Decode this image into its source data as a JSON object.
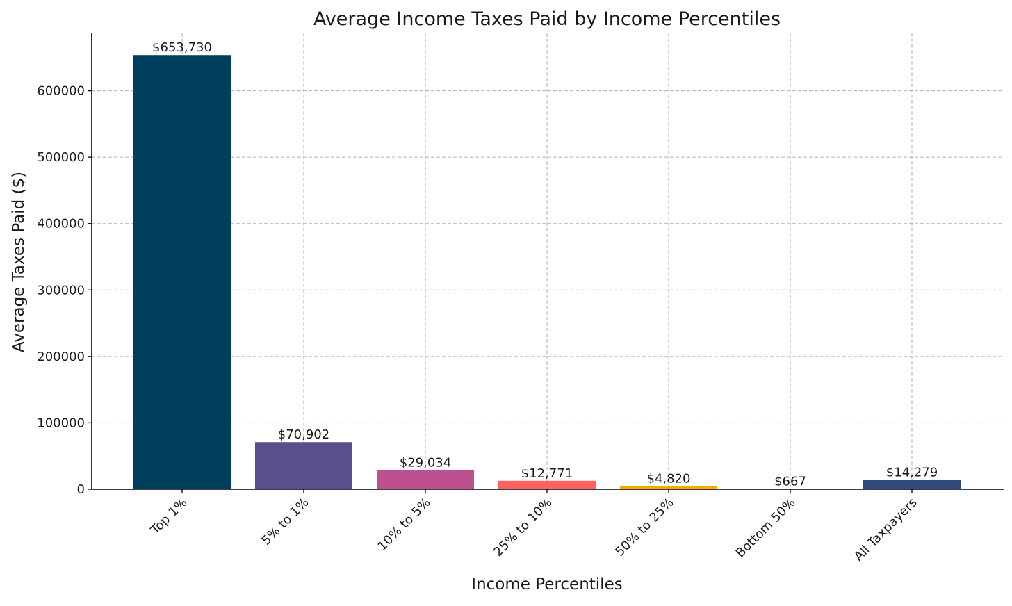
{
  "chart_data": {
    "type": "bar",
    "title": "Average Income Taxes Paid by Income Percentiles",
    "xlabel": "Income Percentiles",
    "ylabel": "Average Taxes Paid ($)",
    "categories": [
      "Top 1%",
      "5% to 1%",
      "10% to 5%",
      "25% to 10%",
      "50% to 25%",
      "Bottom 50%",
      "All Taxpayers"
    ],
    "values": [
      653730,
      70902,
      29034,
      12771,
      4820,
      667,
      14279
    ],
    "data_labels": [
      "$653,730",
      "$70,902",
      "$29,034",
      "$12,771",
      "$4,820",
      "$667",
      "$14,279"
    ],
    "colors": [
      "#003f5c",
      "#58508d",
      "#bc5090",
      "#ff6361",
      "#ffa600",
      "#3a3a8c",
      "#2f4b7c"
    ],
    "y_ticks": [
      0,
      100000,
      200000,
      300000,
      400000,
      500000,
      600000
    ],
    "y_tick_labels": [
      "0",
      "100000",
      "200000",
      "300000",
      "400000",
      "500000",
      "600000"
    ],
    "ylim": [
      0,
      686417
    ],
    "grid": true,
    "legend": "none"
  }
}
